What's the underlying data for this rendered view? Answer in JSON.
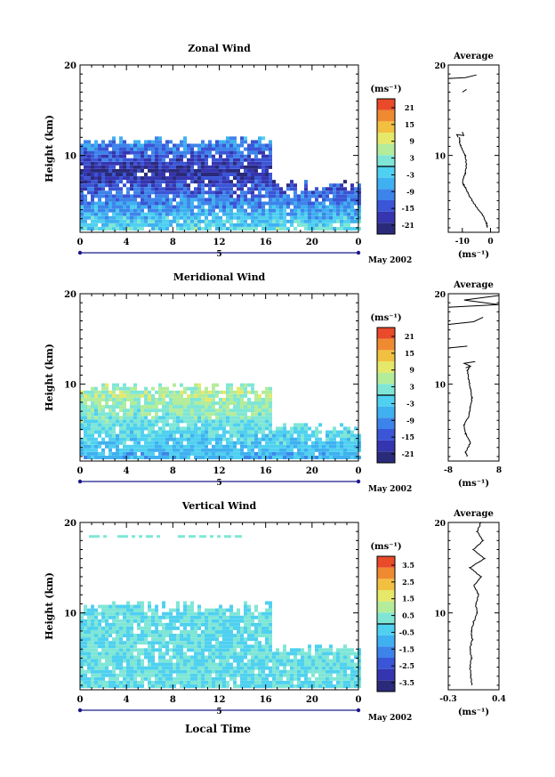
{
  "figure": {
    "x_title": "Local Time",
    "date_label": "May 2002",
    "day_label": "5"
  },
  "palette": [
    "#2a2a7a",
    "#3535b0",
    "#3a55d6",
    "#3d84ea",
    "#3fb0f0",
    "#4fd0f0",
    "#7fe6d6",
    "#b3ec9a",
    "#e6e86a",
    "#f2c040",
    "#ef8a30",
    "#e84a2a"
  ],
  "chart_data": [
    {
      "type": "heatmap",
      "title": "Zonal Wind",
      "xlabel": "",
      "ylabel": "Height (km)",
      "xlim": [
        0,
        24
      ],
      "ylim": [
        1.5,
        20
      ],
      "xticks": [
        "0",
        "4",
        "8",
        "12",
        "16",
        "20",
        "0"
      ],
      "yticks": [
        "10",
        "20"
      ],
      "colorbar": {
        "unit": "(ms⁻¹)",
        "ticks": [
          "21",
          "15",
          "9",
          "3",
          "-3",
          "-9",
          "-15",
          "-21"
        ],
        "range": [
          -24,
          24
        ]
      },
      "field": {
        "coverage_top_km": 11.5,
        "late_top_km": 6.5,
        "min": -22,
        "max": 6,
        "core_height_km": 8,
        "core_value": -20,
        "surface_value": 0
      },
      "profile": {
        "title": "Average",
        "xlabel": "(ms⁻¹)",
        "xticks": [
          "-10",
          "0"
        ],
        "xlim": [
          -15,
          3
        ],
        "yticks": [
          "10",
          "20"
        ],
        "points": [
          [
            -1.0,
            2.0
          ],
          [
            -1.5,
            2.5
          ],
          [
            -3.0,
            3.5
          ],
          [
            -5.5,
            4.5
          ],
          [
            -7.5,
            5.5
          ],
          [
            -9.0,
            6.5
          ],
          [
            -10.0,
            7.0
          ],
          [
            -9.0,
            8.0
          ],
          [
            -8.5,
            9.0
          ],
          [
            -9.0,
            10.0
          ],
          [
            -10.5,
            11.0
          ],
          [
            -11.0,
            11.5
          ],
          [
            -11.0,
            12.0
          ]
        ],
        "upper": [
          [
            [
              -11.5,
              12.0
            ],
            [
              -12.0,
              12.3
            ],
            [
              -9.5,
              12.2
            ],
            [
              -10.0,
              12.6
            ]
          ],
          [
            [
              -15,
              18.5
            ],
            [
              -9.0,
              18.6
            ],
            [
              -5.0,
              18.9
            ]
          ],
          [
            [
              -10.0,
              17.0
            ],
            [
              -8.5,
              17.3
            ]
          ]
        ]
      }
    },
    {
      "type": "heatmap",
      "title": "Meridional Wind",
      "xlabel": "",
      "ylabel": "Height (km)",
      "xlim": [
        0,
        24
      ],
      "ylim": [
        1.5,
        20
      ],
      "xticks": [
        "0",
        "4",
        "8",
        "12",
        "16",
        "20",
        "0"
      ],
      "yticks": [
        "10",
        "20"
      ],
      "colorbar": {
        "unit": "(ms⁻¹)",
        "ticks": [
          "21",
          "15",
          "9",
          "3",
          "-3",
          "-9",
          "-15",
          "-21"
        ],
        "range": [
          -24,
          24
        ]
      },
      "field": {
        "coverage_top_km": 9.5,
        "late_top_km": 5.0,
        "min": -12,
        "max": 8,
        "core_height_km": 8.5,
        "core_value": 6,
        "surface_value": -6
      },
      "profile": {
        "title": "Average",
        "xlabel": "(ms⁻¹)",
        "xticks": [
          "-8",
          "8"
        ],
        "xlim": [
          -8,
          8
        ],
        "yticks": [
          "10",
          "20"
        ],
        "points": [
          [
            -2.0,
            2.0
          ],
          [
            -2.5,
            2.5
          ],
          [
            -1.0,
            3.5
          ],
          [
            -2.5,
            4.5
          ],
          [
            -3.0,
            5.5
          ],
          [
            -1.5,
            6.5
          ],
          [
            -1.0,
            7.5
          ],
          [
            -0.5,
            8.5
          ],
          [
            -1.0,
            9.5
          ],
          [
            -1.5,
            10.5
          ],
          [
            -2.0,
            11.5
          ],
          [
            -1.0,
            12.0
          ]
        ],
        "upper": [
          [
            [
              -2.5,
              11.8
            ],
            [
              -1.0,
              12.0
            ],
            [
              -3.0,
              12.3
            ],
            [
              0.5,
              12.5
            ]
          ],
          [
            [
              -8,
              14.0
            ],
            [
              -2.0,
              14.2
            ]
          ],
          [
            [
              -8,
              16.6
            ],
            [
              0.0,
              16.9
            ],
            [
              3.0,
              17.4
            ]
          ],
          [
            [
              -8,
              18.5
            ],
            [
              8,
              18.8
            ],
            [
              -3.0,
              19.3
            ],
            [
              8,
              19.8
            ]
          ]
        ]
      }
    },
    {
      "type": "heatmap",
      "title": "Vertical Wind",
      "xlabel": "Local Time",
      "ylabel": "Height (km)",
      "xlim": [
        0,
        24
      ],
      "ylim": [
        1.5,
        20
      ],
      "xticks": [
        "0",
        "4",
        "8",
        "12",
        "16",
        "20",
        "0"
      ],
      "yticks": [
        "10",
        "20"
      ],
      "colorbar": {
        "unit": "(ms⁻¹)",
        "ticks": [
          "3.5",
          "2.5",
          "1.5",
          "0.5",
          "-0.5",
          "-1.5",
          "-2.5",
          "-3.5"
        ],
        "range": [
          -4,
          4
        ]
      },
      "field": {
        "coverage_top_km": 10.5,
        "late_top_km": 6.0,
        "min": -1.5,
        "max": 1.5,
        "core_height_km": 6,
        "core_value": 0,
        "surface_value": 0
      },
      "profile": {
        "title": "Average",
        "xlabel": "(ms⁻¹)",
        "xticks": [
          "-0.3",
          "0.4"
        ],
        "xlim": [
          -0.3,
          0.4
        ],
        "yticks": [
          "10",
          "20"
        ],
        "points": [
          [
            0.03,
            2.0
          ],
          [
            0.01,
            3.0
          ],
          [
            0.0,
            4.0
          ],
          [
            0.02,
            5.0
          ],
          [
            0.0,
            6.0
          ],
          [
            0.03,
            7.0
          ],
          [
            0.02,
            8.0
          ],
          [
            0.05,
            9.0
          ],
          [
            0.1,
            10.0
          ],
          [
            0.08,
            11.0
          ],
          [
            0.12,
            12.0
          ],
          [
            0.05,
            13.0
          ],
          [
            0.15,
            14.0
          ],
          [
            0.0,
            15.0
          ],
          [
            0.2,
            16.0
          ],
          [
            0.05,
            17.0
          ],
          [
            0.18,
            18.0
          ],
          [
            0.1,
            19.0
          ],
          [
            0.15,
            20.0
          ]
        ],
        "upper": []
      }
    }
  ]
}
